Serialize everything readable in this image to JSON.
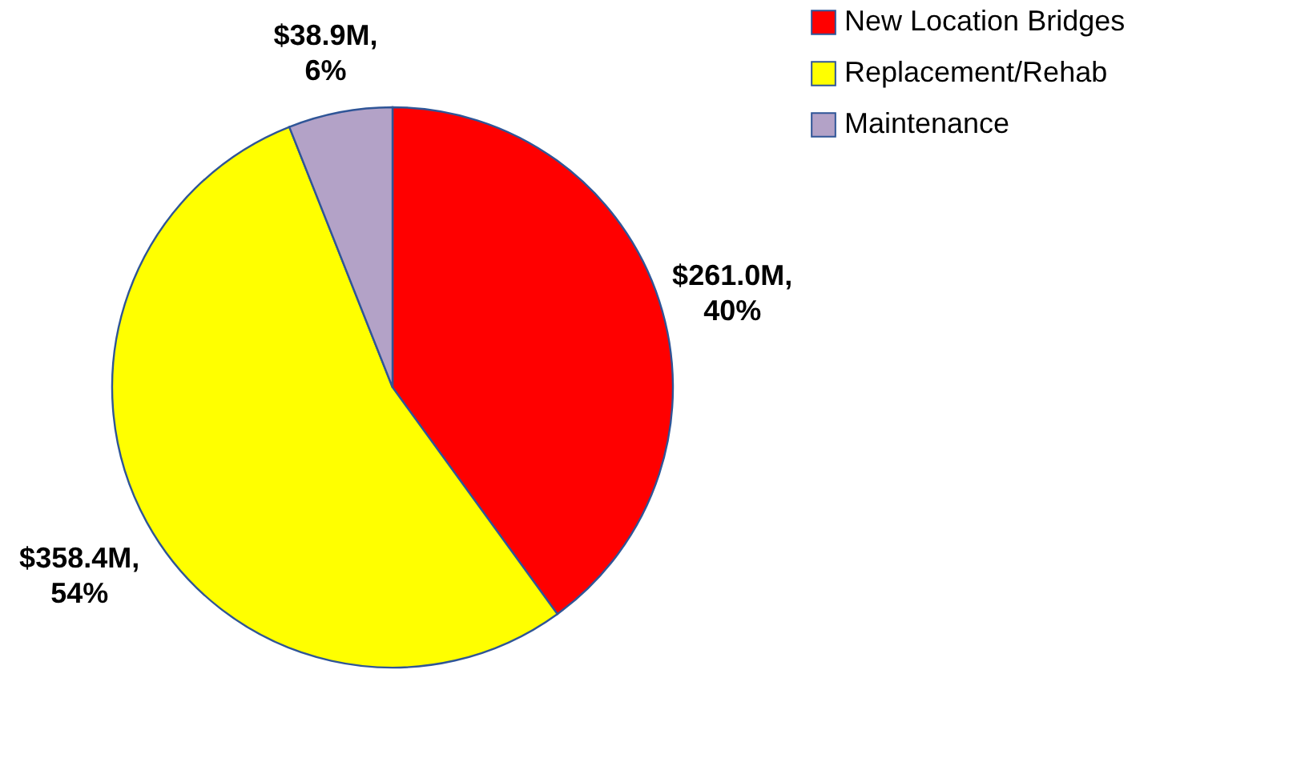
{
  "chart_data": {
    "type": "pie",
    "categories": [
      "New Location Bridges",
      "Replacement/Rehab",
      "Maintenance"
    ],
    "values": [
      40,
      54,
      6
    ],
    "colors": [
      "#ff0000",
      "#ffff00",
      "#b3a2c7"
    ],
    "value_labels": [
      "$261.0M, 40%",
      "$358.4M, 54%",
      "$38.9M, 6%"
    ],
    "legend": "right"
  }
}
